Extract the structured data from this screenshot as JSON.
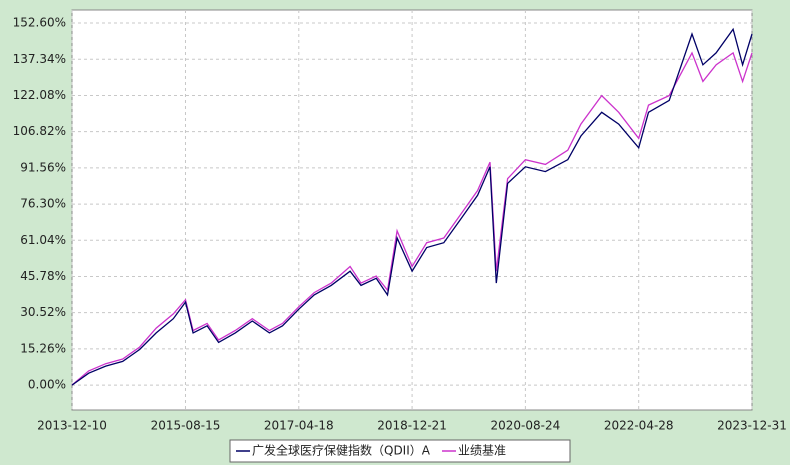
{
  "chart_data": {
    "type": "line",
    "x": [
      "2013-12-10",
      "2014-03-10",
      "2014-06-10",
      "2014-09-10",
      "2014-12-10",
      "2015-03-10",
      "2015-06-10",
      "2015-08-15",
      "2015-09-25",
      "2015-12-10",
      "2016-02-10",
      "2016-05-10",
      "2016-08-10",
      "2016-11-10",
      "2017-01-20",
      "2017-04-18",
      "2017-07-10",
      "2017-10-10",
      "2018-01-20",
      "2018-03-20",
      "2018-06-10",
      "2018-08-10",
      "2018-10-01",
      "2018-12-21",
      "2019-03-10",
      "2019-06-10",
      "2019-09-10",
      "2019-12-10",
      "2020-02-15",
      "2020-03-20",
      "2020-05-20",
      "2020-08-24",
      "2020-12-10",
      "2021-04-10",
      "2021-06-20",
      "2021-10-10",
      "2022-01-10",
      "2022-04-28",
      "2022-06-20",
      "2022-10-10",
      "2023-02-10",
      "2023-04-10",
      "2023-06-20",
      "2023-09-20",
      "2023-11-10",
      "2023-12-31"
    ],
    "series": [
      {
        "name": "广发全球医疗保健指数（QDII）A",
        "color": "#000066",
        "values": [
          0,
          5,
          8,
          10,
          15,
          22,
          28,
          35,
          22,
          25,
          18,
          22,
          27,
          22,
          25,
          32,
          38,
          42,
          48,
          42,
          45,
          38,
          62,
          48,
          58,
          60,
          70,
          80,
          92,
          43,
          85,
          92,
          90,
          95,
          105,
          115,
          110,
          100,
          115,
          120,
          148,
          135,
          140,
          150,
          135,
          148
        ]
      },
      {
        "name": "业绩基准",
        "color": "#cc33cc",
        "values": [
          0,
          6,
          9,
          11,
          16,
          24,
          30,
          36,
          23,
          26,
          19,
          23,
          28,
          23,
          26,
          33,
          39,
          43,
          50,
          43,
          46,
          40,
          65,
          50,
          60,
          62,
          72,
          82,
          94,
          48,
          87,
          95,
          93,
          99,
          110,
          122,
          115,
          104,
          118,
          122,
          140,
          128,
          135,
          140,
          128,
          140
        ]
      }
    ],
    "xlim": [
      "2013-12-10",
      "2023-12-31"
    ],
    "xticks": [
      "2013-12-10",
      "2015-08-15",
      "2017-04-18",
      "2018-12-21",
      "2020-08-24",
      "2022-04-28",
      "2023-12-31"
    ],
    "ylim": [
      -10.5,
      158.1
    ],
    "yticks": [
      {
        "value": 0,
        "label": "0.00%"
      },
      {
        "value": 15.26,
        "label": "15.26%"
      },
      {
        "value": 30.52,
        "label": "30.52%"
      },
      {
        "value": 45.78,
        "label": "45.78%"
      },
      {
        "value": 61.04,
        "label": "61.04%"
      },
      {
        "value": 76.3,
        "label": "76.30%"
      },
      {
        "value": 91.56,
        "label": "91.56%"
      },
      {
        "value": 106.82,
        "label": "106.82%"
      },
      {
        "value": 122.08,
        "label": "122.08%"
      },
      {
        "value": 137.34,
        "label": "137.34%"
      },
      {
        "value": 152.6,
        "label": "152.60%"
      }
    ],
    "grid": true
  }
}
